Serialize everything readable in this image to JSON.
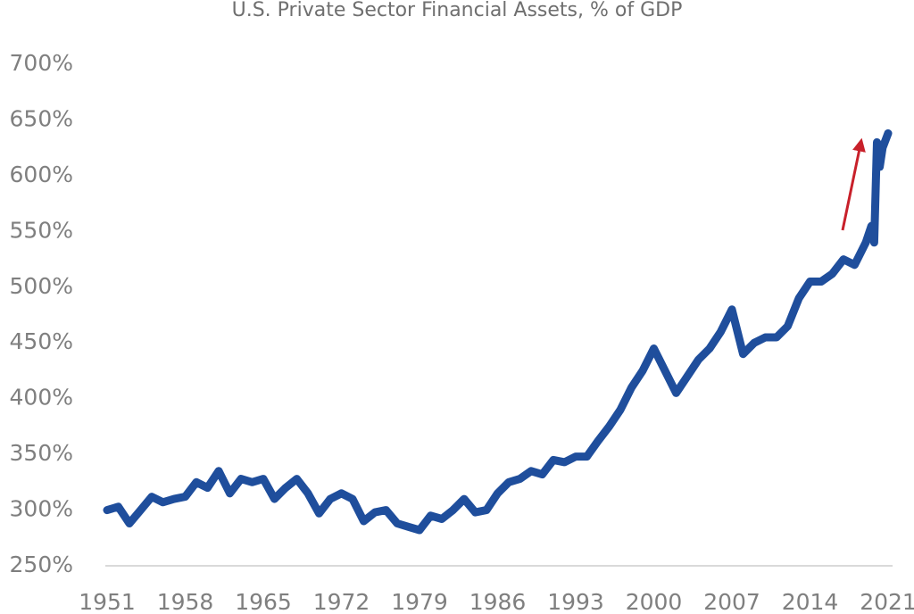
{
  "chart_data": {
    "type": "line",
    "title": "U.S. Private Sector Financial Assets, % of GDP",
    "x": [
      1951,
      1952,
      1953,
      1954,
      1955,
      1956,
      1957,
      1958,
      1959,
      1960,
      1961,
      1962,
      1963,
      1964,
      1965,
      1966,
      1967,
      1968,
      1969,
      1970,
      1971,
      1972,
      1973,
      1974,
      1975,
      1976,
      1977,
      1978,
      1979,
      1980,
      1981,
      1982,
      1983,
      1984,
      1985,
      1986,
      1987,
      1988,
      1989,
      1990,
      1991,
      1992,
      1993,
      1994,
      1995,
      1996,
      1997,
      1998,
      1999,
      2000,
      2001,
      2002,
      2003,
      2004,
      2005,
      2006,
      2007,
      2008,
      2009,
      2010,
      2011,
      2012,
      2013,
      2014,
      2015,
      2016,
      2017,
      2018,
      2019,
      2019.5,
      2019.75,
      2020,
      2020.25,
      2020.5,
      2021
    ],
    "series": [
      {
        "name": "Financial Assets",
        "color": "#1f4e9c",
        "values": [
          300,
          303,
          288,
          300,
          312,
          307,
          310,
          312,
          325,
          320,
          335,
          315,
          328,
          325,
          328,
          310,
          320,
          328,
          315,
          297,
          310,
          315,
          310,
          290,
          298,
          300,
          288,
          285,
          282,
          295,
          292,
          300,
          310,
          298,
          300,
          315,
          325,
          328,
          335,
          332,
          345,
          343,
          348,
          348,
          362,
          375,
          390,
          410,
          425,
          445,
          425,
          405,
          420,
          435,
          445,
          460,
          480,
          440,
          450,
          455,
          455,
          465,
          490,
          505,
          505,
          512,
          525,
          520,
          540,
          555,
          540,
          630,
          608,
          625,
          638
        ]
      }
    ],
    "xlim": [
      1951,
      2021
    ],
    "xticks": [
      1951,
      1958,
      1965,
      1972,
      1979,
      1986,
      1993,
      2000,
      2007,
      2014,
      2021
    ],
    "ylim": [
      250,
      700
    ],
    "yticks": [
      {
        "value": 250,
        "label": "250%"
      },
      {
        "value": 300,
        "label": "300%"
      },
      {
        "value": 350,
        "label": "350%"
      },
      {
        "value": 400,
        "label": "400%"
      },
      {
        "value": 450,
        "label": "450%"
      },
      {
        "value": 500,
        "label": "500%"
      },
      {
        "value": 550,
        "label": "550%"
      },
      {
        "value": 600,
        "label": "600%"
      },
      {
        "value": 650,
        "label": "650%"
      },
      {
        "value": 700,
        "label": "700%"
      }
    ]
  }
}
